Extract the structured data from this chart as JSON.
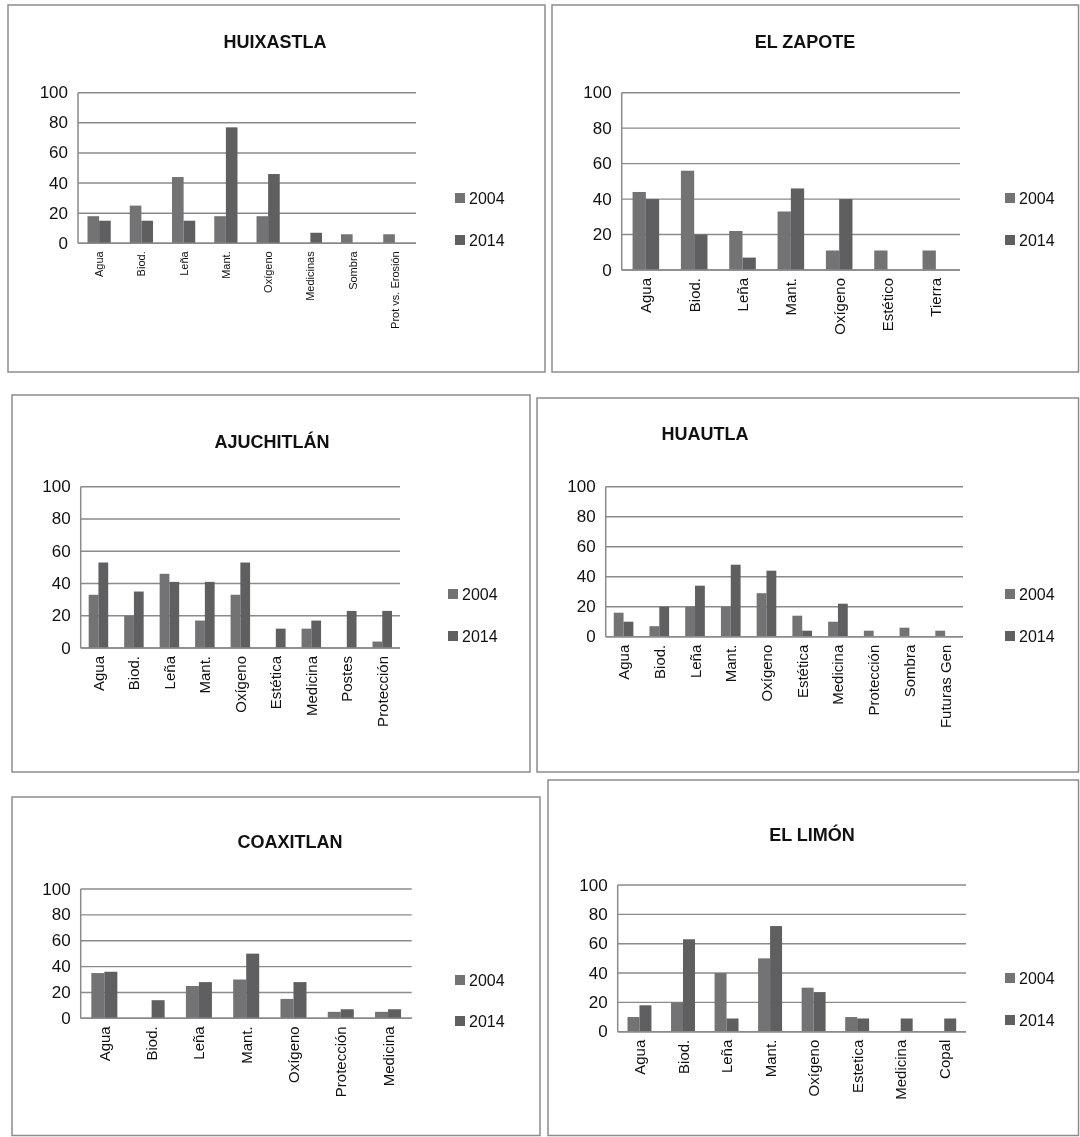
{
  "chart_data": [
    {
      "type": "bar",
      "title": "HUIXASTLA",
      "categories": [
        "Agua",
        "Biod.",
        "Leña",
        "Mant.",
        "Oxígeno",
        "Medicinas",
        "Sombra",
        "Prot vs. Erosión"
      ],
      "series": [
        {
          "name": "2004",
          "color": "#737375",
          "values": [
            18,
            25,
            44,
            18,
            18,
            null,
            6,
            6
          ]
        },
        {
          "name": "2014",
          "color": "#5f5f61",
          "values": [
            15,
            15,
            15,
            77,
            46,
            7,
            null,
            null
          ]
        }
      ],
      "ylim": [
        0,
        100
      ],
      "yticks": [
        0,
        20,
        40,
        60,
        80,
        100
      ],
      "grid": "y",
      "legend": "right"
    },
    {
      "type": "bar",
      "title": "EL ZAPOTE",
      "categories": [
        "Agua",
        "Biod.",
        "Leña",
        "Mant.",
        "Oxígeno",
        "Estético",
        "Tierra"
      ],
      "series": [
        {
          "name": "2004",
          "color": "#737375",
          "values": [
            44,
            56,
            22,
            33,
            11,
            11,
            11
          ]
        },
        {
          "name": "2014",
          "color": "#5f5f61",
          "values": [
            40,
            20,
            7,
            46,
            40,
            null,
            null
          ]
        }
      ],
      "ylim": [
        0,
        100
      ],
      "yticks": [
        0,
        20,
        40,
        60,
        80,
        100
      ],
      "grid": "y",
      "legend": "right"
    },
    {
      "type": "bar",
      "title": "AJUCHITLÁN",
      "categories": [
        "Agua",
        "Biod.",
        "Leña",
        "Mant.",
        "Oxígeno",
        "Estética",
        "Medicina",
        "Postes",
        "Protección"
      ],
      "series": [
        {
          "name": "2004",
          "color": "#737375",
          "values": [
            33,
            20,
            46,
            17,
            33,
            null,
            12,
            null,
            4
          ]
        },
        {
          "name": "2014",
          "color": "#5f5f61",
          "values": [
            53,
            35,
            41,
            41,
            53,
            12,
            17,
            23,
            23
          ]
        }
      ],
      "ylim": [
        0,
        100
      ],
      "yticks": [
        0,
        20,
        40,
        60,
        80,
        100
      ],
      "grid": "y",
      "legend": "right"
    },
    {
      "type": "bar",
      "title": "HUAUTLA",
      "categories": [
        "Agua",
        "Biod.",
        "Leña",
        "Mant.",
        "Oxígeno",
        "Estética",
        "Medicina",
        "Protección",
        "Sombra",
        "Futuras Gen"
      ],
      "series": [
        {
          "name": "2004",
          "color": "#737375",
          "values": [
            16,
            7,
            20,
            20,
            29,
            14,
            10,
            4,
            6,
            4
          ]
        },
        {
          "name": "2014",
          "color": "#5f5f61",
          "values": [
            10,
            20,
            34,
            48,
            44,
            4,
            22,
            null,
            null,
            null
          ]
        }
      ],
      "ylim": [
        0,
        100
      ],
      "yticks": [
        0,
        20,
        40,
        60,
        80,
        100
      ],
      "grid": "y",
      "legend": "right"
    },
    {
      "type": "bar",
      "title": "COAXITLAN",
      "categories": [
        "Agua",
        "Biod.",
        "Leña",
        "Mant.",
        "Oxígeno",
        "Protección",
        "Medicina"
      ],
      "series": [
        {
          "name": "2004",
          "color": "#737375",
          "values": [
            35,
            null,
            25,
            30,
            15,
            5,
            5
          ]
        },
        {
          "name": "2014",
          "color": "#5f5f61",
          "values": [
            36,
            14,
            28,
            50,
            28,
            7,
            7
          ]
        }
      ],
      "ylim": [
        0,
        100
      ],
      "yticks": [
        0,
        20,
        40,
        60,
        80,
        100
      ],
      "grid": "y",
      "legend": "right"
    },
    {
      "type": "bar",
      "title": "EL LIMÓN",
      "categories": [
        "Agua",
        "Biod.",
        "Leña",
        "Mant.",
        "Oxígeno",
        "Estetica",
        "Medicina",
        "Copal"
      ],
      "series": [
        {
          "name": "2004",
          "color": "#737375",
          "values": [
            10,
            20,
            40,
            50,
            30,
            10,
            null,
            null
          ]
        },
        {
          "name": "2014",
          "color": "#5f5f61",
          "values": [
            18,
            63,
            9,
            72,
            27,
            9,
            9,
            9
          ]
        }
      ],
      "ylim": [
        0,
        100
      ],
      "yticks": [
        0,
        20,
        40,
        60,
        80,
        100
      ],
      "grid": "y",
      "legend": "right"
    }
  ]
}
